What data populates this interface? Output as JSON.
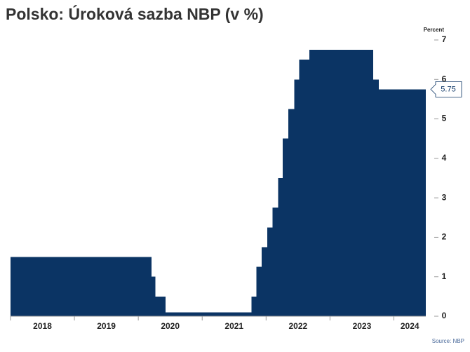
{
  "chart_data": {
    "type": "step-area",
    "title": "Polsko: Úroková sazba NBP (v %)",
    "y_axis_label": "Percent",
    "source": "Source: NBP",
    "x": [
      2018.0,
      2020.2,
      2020.26,
      2020.42,
      2021.77,
      2021.85,
      2021.93,
      2022.02,
      2022.1,
      2022.19,
      2022.26,
      2022.35,
      2022.44,
      2022.52,
      2022.68,
      2023.67,
      2023.76
    ],
    "series": [
      {
        "name": "Úroková sazba NBP",
        "color": "#0b3464",
        "values": [
          1.5,
          1.0,
          0.5,
          0.1,
          0.5,
          1.25,
          1.75,
          2.25,
          2.75,
          3.5,
          4.5,
          5.25,
          6.0,
          6.5,
          6.75,
          6.0,
          5.75
        ]
      }
    ],
    "xlim": [
      2018,
      2024.5
    ],
    "xticks": [
      2018,
      2019,
      2020,
      2021,
      2022,
      2023,
      2024
    ],
    "ylim": [
      0,
      7
    ],
    "yticks": [
      0,
      1,
      2,
      3,
      4,
      5,
      6,
      7
    ]
  }
}
